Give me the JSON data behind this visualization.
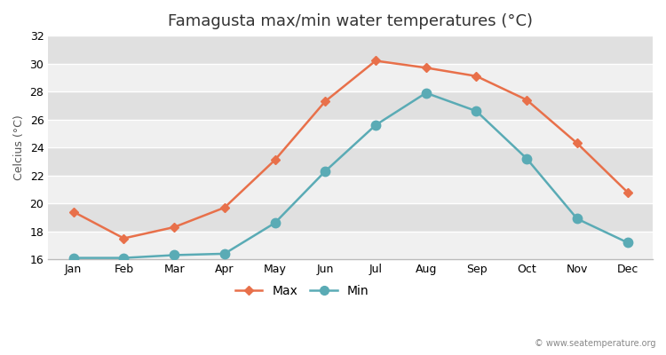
{
  "title": "Famagusta max/min water temperatures (°C)",
  "ylabel": "Celcius (°C)",
  "months": [
    "Jan",
    "Feb",
    "Mar",
    "Apr",
    "May",
    "Jun",
    "Jul",
    "Aug",
    "Sep",
    "Oct",
    "Nov",
    "Dec"
  ],
  "max_temps": [
    19.4,
    17.5,
    18.3,
    19.7,
    23.1,
    27.3,
    30.2,
    29.7,
    29.1,
    27.4,
    24.3,
    20.8
  ],
  "min_temps": [
    16.1,
    16.1,
    16.3,
    16.4,
    18.6,
    22.3,
    25.6,
    27.9,
    26.6,
    23.2,
    18.9,
    17.2
  ],
  "max_color": "#e8704a",
  "min_color": "#5aabb5",
  "figure_bg": "#ffffff",
  "plot_bg_light": "#f0f0f0",
  "plot_bg_dark": "#e0e0e0",
  "ylim": [
    16,
    32
  ],
  "yticks": [
    16,
    18,
    20,
    22,
    24,
    26,
    28,
    30,
    32
  ],
  "grid_color": "#ffffff",
  "max_marker": "D",
  "min_marker": "o",
  "max_marker_size": 5,
  "min_marker_size": 7,
  "line_width": 1.8,
  "watermark": "© www.seatemperature.org",
  "title_fontsize": 13,
  "axis_fontsize": 9,
  "legend_fontsize": 10
}
